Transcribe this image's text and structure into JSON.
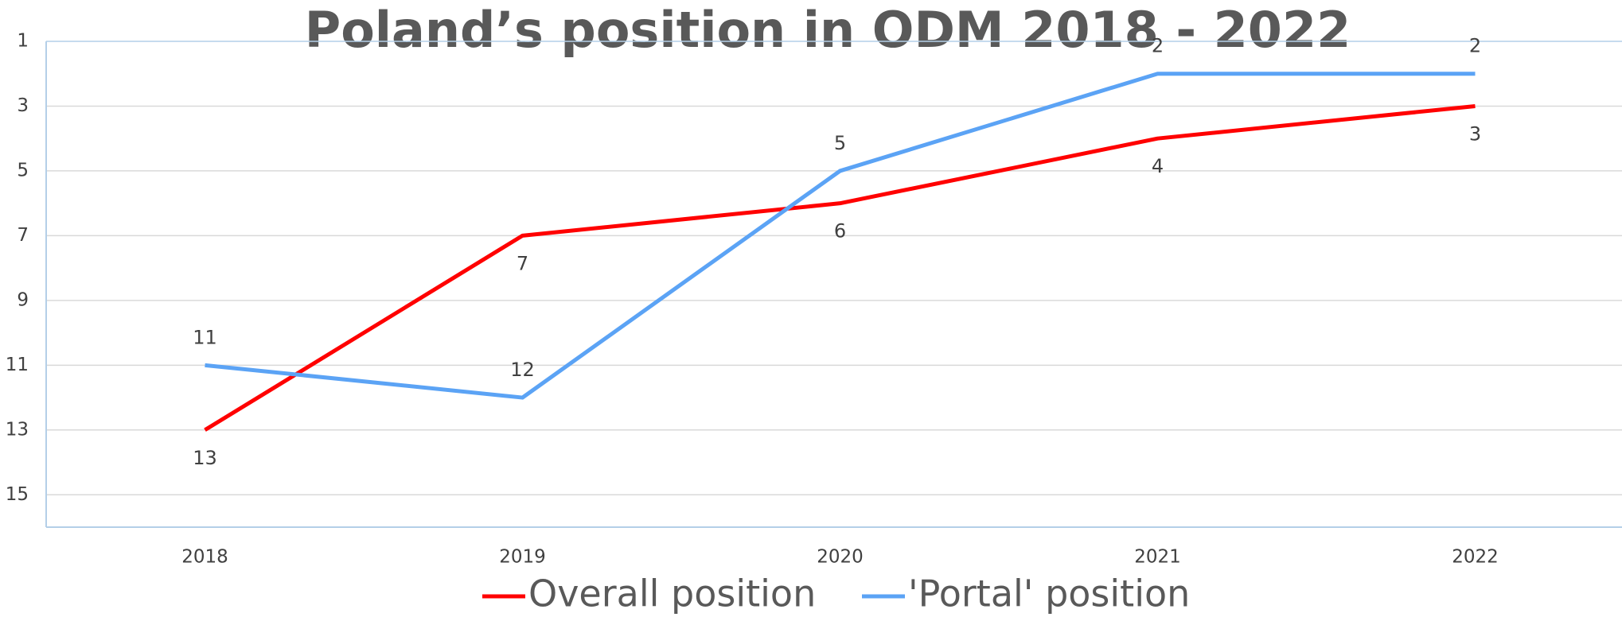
{
  "chart_data": {
    "type": "line",
    "title": "Poland’s position in ODM 2018 - 2022",
    "categories": [
      "2018",
      "2019",
      "2020",
      "2021",
      "2022"
    ],
    "series": [
      {
        "name": "Overall position",
        "color": "#ff0000",
        "values": [
          13,
          7,
          6,
          4,
          3
        ],
        "label_position": "below"
      },
      {
        "name": "'Portal' position",
        "color": "#5ba3f5",
        "values": [
          11,
          12,
          5,
          2,
          2
        ],
        "label_position": "above"
      }
    ],
    "ylim": [
      1,
      16
    ],
    "yticks": [
      1,
      3,
      5,
      7,
      9,
      11,
      13,
      15
    ],
    "y_inverted": true,
    "grid": true,
    "legend": "bottom"
  }
}
